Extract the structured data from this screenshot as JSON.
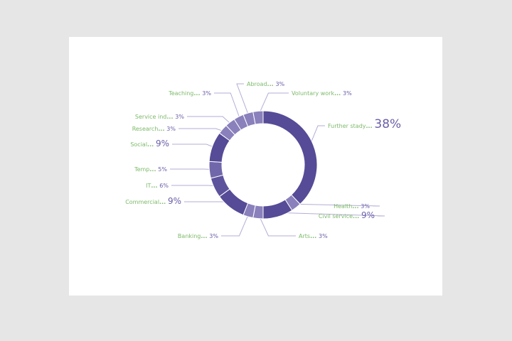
{
  "chart_data": {
    "type": "pie",
    "donut": true,
    "separator": "...",
    "slices": [
      {
        "label": "Further stady",
        "value": 38,
        "display": "38%",
        "color": "#554b96"
      },
      {
        "label": "Health",
        "value": 3,
        "display": "3%",
        "color": "#8a80bb"
      },
      {
        "label": "Civil service",
        "value": 9,
        "display": "9%",
        "color": "#554b96"
      },
      {
        "label": "Arts",
        "value": 3,
        "display": "3%",
        "color": "#8a80bb"
      },
      {
        "label": "Banking",
        "value": 3,
        "display": "3%",
        "color": "#8a80bb"
      },
      {
        "label": "Commercial",
        "value": 9,
        "display": "9%",
        "color": "#554b96"
      },
      {
        "label": "IT",
        "value": 6,
        "display": "6%",
        "color": "#5d539c"
      },
      {
        "label": "Temp",
        "value": 5,
        "display": "5%",
        "color": "#7067ab"
      },
      {
        "label": "Social",
        "value": 9,
        "display": "9%",
        "color": "#554b96"
      },
      {
        "label": "Research",
        "value": 3,
        "display": "3%",
        "color": "#8a80bb"
      },
      {
        "label": "Service ind",
        "value": 3,
        "display": "3%",
        "color": "#8a80bb"
      },
      {
        "label": "Teaching",
        "value": 3,
        "display": "3%",
        "color": "#8a80bb"
      },
      {
        "label": "Abroad",
        "value": 3,
        "display": "3%",
        "color": "#8a80bb"
      },
      {
        "label": "Voluntary work",
        "value": 3,
        "display": "3%",
        "color": "#8a80bb"
      }
    ],
    "colors": {
      "label_text": "#7dba6a",
      "percent_text": "#6a5fa8",
      "leader_line": "#b3aed6",
      "background": "#e6e6e6"
    }
  }
}
